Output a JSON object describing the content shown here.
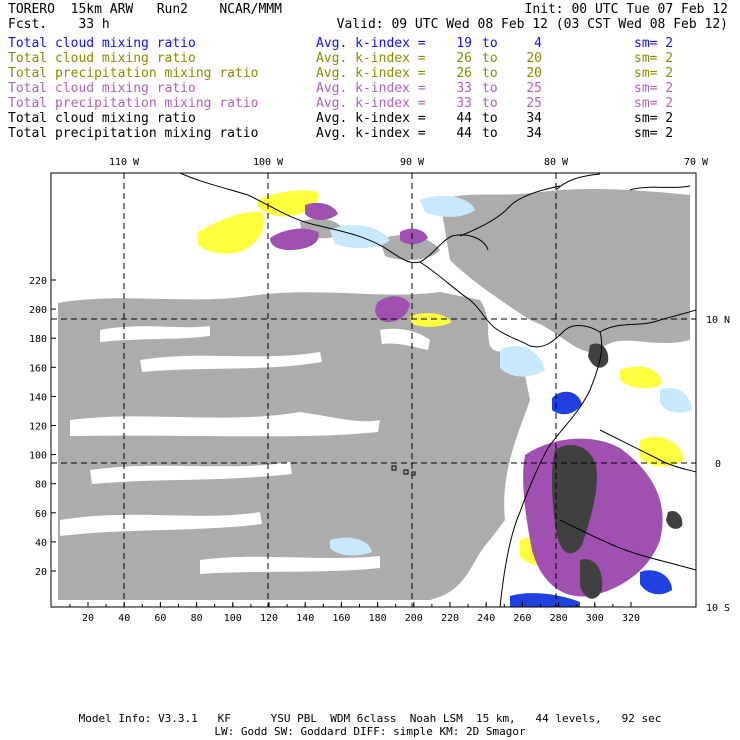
{
  "header": {
    "left1": "TORERO  15km ARW   Run2    NCAR/MMM",
    "left2": "Fcst.    33 h",
    "right1": "Init: 00 UTC Tue 07 Feb 12",
    "right2": "Valid: 09 UTC Wed 08 Feb 12 (03 CST Wed 08 Feb 12)"
  },
  "legend": [
    {
      "name": "Total cloud mixing ratio",
      "avg": "Avg. k-index =",
      "hi": "19",
      "to": "to",
      "lo": "4",
      "sm": "sm= 2",
      "color": "#1010ff"
    },
    {
      "name": "Total cloud mixing ratio",
      "avg": "Avg. k-index =",
      "hi": "26",
      "to": "to",
      "lo": "20",
      "sm": "sm= 2",
      "color": "#8c8c00"
    },
    {
      "name": "Total precipitation mixing ratio",
      "avg": "Avg. k-index =",
      "hi": "26",
      "to": "to",
      "lo": "20",
      "sm": "sm= 2",
      "color": "#8c8c00"
    },
    {
      "name": "Total cloud mixing ratio",
      "avg": "Avg. k-index =",
      "hi": "33",
      "to": "to",
      "lo": "25",
      "sm": "sm= 2",
      "color": "#b060c0"
    },
    {
      "name": "Total precipitation mixing ratio",
      "avg": "Avg. k-index =",
      "hi": "33",
      "to": "to",
      "lo": "25",
      "sm": "sm= 2",
      "color": "#b060c0"
    },
    {
      "name": "Total cloud mixing ratio",
      "avg": "Avg. k-index =",
      "hi": "44",
      "to": "to",
      "lo": "34",
      "sm": "sm= 2",
      "color": "#000000"
    },
    {
      "name": "Total precipitation mixing ratio",
      "avg": "Avg. k-index =",
      "hi": "44",
      "to": "to",
      "lo": "34",
      "sm": "sm= 2",
      "color": "#000000"
    }
  ],
  "map": {
    "lon_labels": [
      "110 W",
      "100 W",
      "90 W",
      "80 W",
      "70 W"
    ],
    "lat_labels": [
      "10 N",
      "0",
      "10 S"
    ],
    "x_ticks": [
      "20",
      "40",
      "60",
      "80",
      "100",
      "120",
      "140",
      "160",
      "180",
      "200",
      "220",
      "240",
      "260",
      "280",
      "300",
      "320"
    ],
    "y_ticks": [
      "20",
      "40",
      "60",
      "80",
      "100",
      "120",
      "140",
      "160",
      "180",
      "200",
      "220"
    ],
    "colors": {
      "gray": "#a8a8a8",
      "dark": "#404040",
      "yellow": "#ffff40",
      "purple": "#a050b0",
      "lightblue": "#c8e8ff",
      "blue": "#2040e0"
    }
  },
  "footer": {
    "line1": "Model Info: V3.3.1   KF      YSU PBL  WDM 6class  Noah LSM  15 km,   44 levels,   92 sec",
    "line2": "LW: Godd SW: Goddard DIFF: simple KM: 2D Smagor"
  }
}
